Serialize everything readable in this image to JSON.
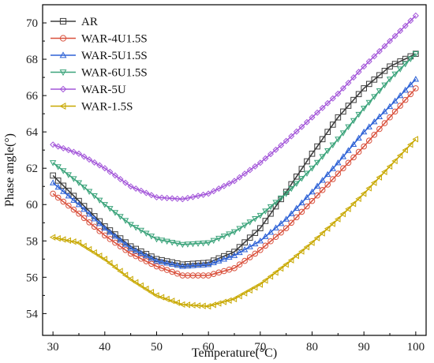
{
  "chart_data": {
    "type": "line",
    "title": "",
    "xlabel": "Temperature(°C)",
    "ylabel": "Phase angle(°)",
    "xlim": [
      28,
      102
    ],
    "ylim": [
      52.8,
      71.0
    ],
    "xticks": [
      30,
      40,
      50,
      60,
      70,
      80,
      90,
      100
    ],
    "yticks": [
      54,
      56,
      58,
      60,
      62,
      64,
      66,
      68,
      70
    ],
    "grid": false,
    "legend_position": "top-left",
    "series": [
      {
        "name": "AR",
        "color": "#3d3d3d",
        "marker": "square",
        "x": [
          30,
          35,
          40,
          45,
          50,
          55,
          60,
          65,
          70,
          75,
          80,
          85,
          90,
          95,
          100
        ],
        "y": [
          61.6,
          60.2,
          58.8,
          57.7,
          57.0,
          56.7,
          56.8,
          57.4,
          58.7,
          60.7,
          62.8,
          64.8,
          66.4,
          67.6,
          68.3
        ]
      },
      {
        "name": "WAR-4U1.5S",
        "color": "#d9513d",
        "marker": "circle",
        "x": [
          30,
          35,
          40,
          45,
          50,
          55,
          60,
          65,
          70,
          75,
          80,
          85,
          90,
          95,
          100
        ],
        "y": [
          60.6,
          59.5,
          58.3,
          57.3,
          56.6,
          56.1,
          56.1,
          56.5,
          57.5,
          58.7,
          60.2,
          61.7,
          63.2,
          64.8,
          66.4
        ]
      },
      {
        "name": "WAR-5U1.5S",
        "color": "#2e62d6",
        "marker": "triangle-up",
        "x": [
          30,
          35,
          40,
          45,
          50,
          55,
          60,
          65,
          70,
          75,
          80,
          85,
          90,
          95,
          100
        ],
        "y": [
          61.2,
          60.0,
          58.7,
          57.6,
          56.9,
          56.6,
          56.7,
          57.2,
          58.0,
          59.2,
          60.7,
          62.3,
          64.0,
          65.4,
          66.9
        ]
      },
      {
        "name": "WAR-6U1.5S",
        "color": "#3aa37a",
        "marker": "triangle-down",
        "x": [
          30,
          35,
          40,
          45,
          50,
          55,
          60,
          65,
          70,
          75,
          80,
          85,
          90,
          95,
          100
        ],
        "y": [
          62.3,
          61.2,
          60.0,
          58.9,
          58.1,
          57.8,
          57.9,
          58.5,
          59.4,
          60.6,
          62.0,
          63.6,
          65.3,
          66.9,
          68.3
        ]
      },
      {
        "name": "WAR-5U",
        "color": "#a356d9",
        "marker": "diamond",
        "x": [
          30,
          35,
          40,
          45,
          50,
          55,
          60,
          65,
          70,
          75,
          80,
          85,
          90,
          95,
          100
        ],
        "y": [
          63.3,
          62.8,
          62.0,
          61.0,
          60.4,
          60.3,
          60.6,
          61.3,
          62.3,
          63.5,
          64.8,
          66.1,
          67.6,
          69.0,
          70.4
        ]
      },
      {
        "name": "WAR-1.5S",
        "color": "#c8a800",
        "marker": "triangle-left",
        "x": [
          30,
          35,
          40,
          45,
          50,
          55,
          60,
          65,
          70,
          75,
          80,
          85,
          90,
          95,
          100
        ],
        "y": [
          58.2,
          57.9,
          57.0,
          55.9,
          55.0,
          54.5,
          54.4,
          54.8,
          55.6,
          56.7,
          57.9,
          59.2,
          60.6,
          62.1,
          63.6
        ]
      }
    ]
  }
}
